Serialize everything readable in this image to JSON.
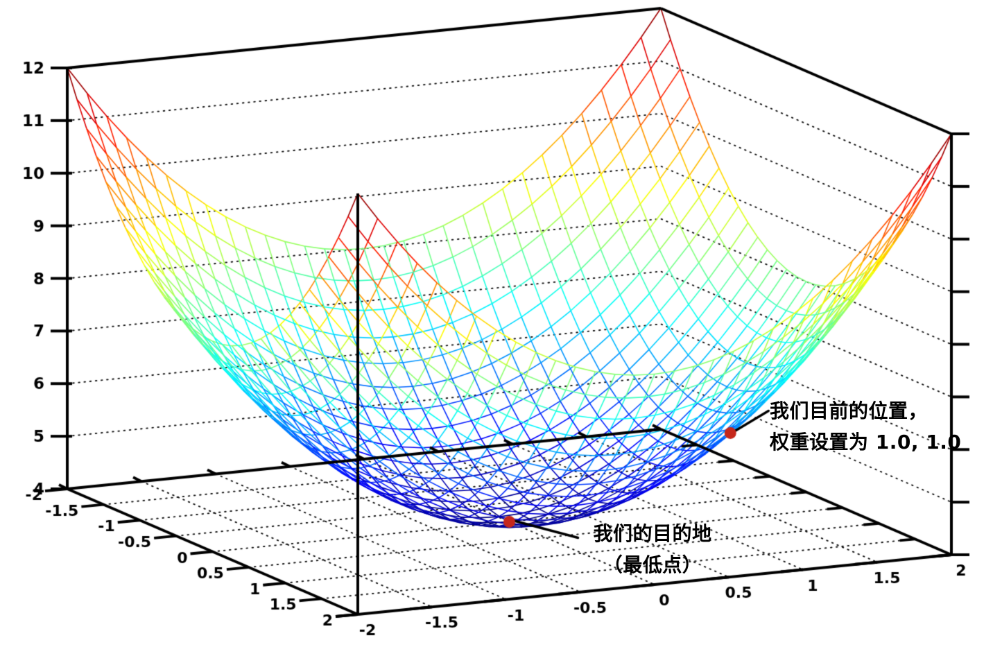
{
  "chart_data": {
    "type": "surface3d_wireframe",
    "title": "",
    "surface_function": "z = x^2 + y^2 + 4",
    "x_range": [
      -2,
      2
    ],
    "y_range": [
      -2,
      2
    ],
    "z_range": [
      4,
      12
    ],
    "mesh_divisions": 30,
    "colormap": "jet",
    "grid": {
      "style": "dotted",
      "wall_z_levels": [
        5,
        6,
        7,
        8,
        9,
        10,
        11
      ],
      "floor_lines": [
        -1.5,
        -1,
        -0.5,
        0,
        0.5,
        1,
        1.5
      ]
    },
    "x_axis": {
      "tick_values": [
        -2,
        -1.5,
        -1,
        -0.5,
        0,
        0.5,
        1,
        1.5,
        2
      ],
      "tick_labels": [
        "-2",
        "-1.5",
        "-1",
        "-0.5",
        "0",
        "0.5",
        "1",
        "1.5",
        "2"
      ]
    },
    "y_axis": {
      "tick_values": [
        -2,
        -1.5,
        -1,
        -0.5,
        0,
        0.5,
        1,
        1.5,
        2
      ],
      "tick_labels": [
        "-2",
        "-1.5",
        "-1",
        "-0.5",
        "0",
        "0.5",
        "1",
        "1.5",
        "2"
      ]
    },
    "z_axis": {
      "tick_values": [
        4,
        5,
        6,
        7,
        8,
        9,
        10,
        11,
        12
      ],
      "tick_labels": [
        "4",
        "5",
        "6",
        "7",
        "8",
        "9",
        "10",
        "11",
        "12"
      ]
    },
    "z_axis_right": {
      "tick_values": [
        4,
        5,
        6,
        7,
        8,
        9,
        10,
        11,
        12
      ]
    },
    "annotations": [
      {
        "target": "current-position",
        "point": {
          "x": 1,
          "y": 1,
          "z": 6
        },
        "lines": [
          "我们目前的位置，",
          "权重设置为 1.0, 1.0"
        ]
      },
      {
        "target": "destination",
        "point": {
          "x": 0,
          "y": 0,
          "z": 4
        },
        "lines": [
          "我们的目的地",
          "（最低点）"
        ]
      }
    ],
    "colors": {
      "axis": "#000000",
      "grid_dots": "#111111",
      "marker": "#c5271b",
      "annotation_text": "#000000",
      "background": "#ffffff"
    }
  }
}
